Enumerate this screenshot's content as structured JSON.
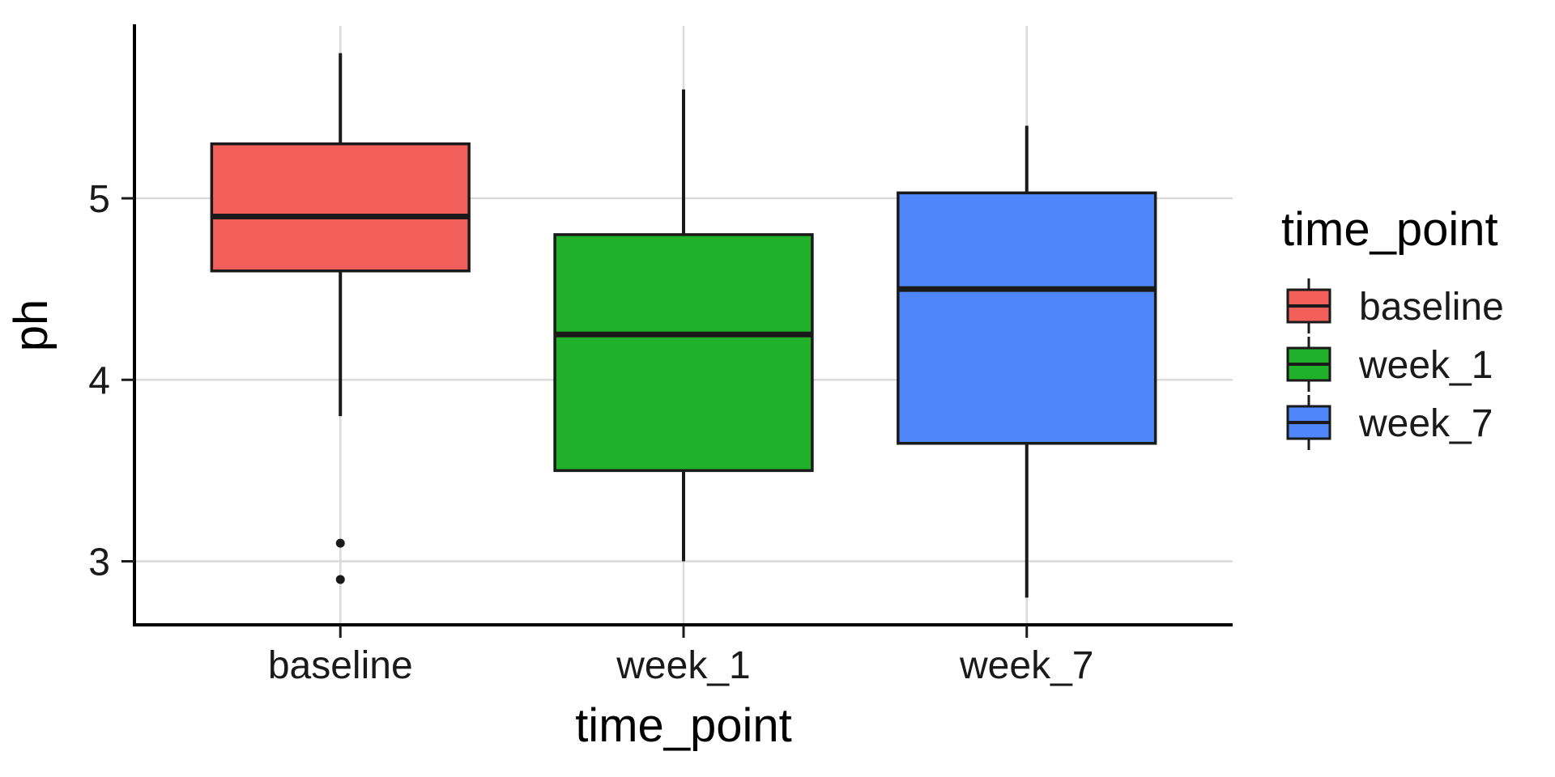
{
  "figure": {
    "background": "#FFFFFF",
    "panel_background": "#FFFFFF",
    "gridline_color": "#DADADA",
    "spine_color": "#000000",
    "box_border_color": "#1A1A1A",
    "title_color": "#000000",
    "tick_label_color": "#1A1A1A"
  },
  "chart_data": {
    "type": "boxplot",
    "title": "",
    "xlabel": "time_point",
    "ylabel": "ph",
    "categories": [
      "baseline",
      "week_1",
      "week_7"
    ],
    "y_ticks": [
      3,
      4,
      5
    ],
    "ylim": [
      2.65,
      5.95
    ],
    "grid": "major-horizontal-and-category-vertical",
    "legend_position": "right",
    "series": [
      {
        "name": "baseline",
        "fill": "#F25E5A",
        "whisker_low": 3.8,
        "q1": 4.6,
        "median": 4.9,
        "q3": 5.3,
        "whisker_high": 5.8,
        "outliers": [
          3.1,
          2.9
        ]
      },
      {
        "name": "week_1",
        "fill": "#20B02A",
        "whisker_low": 3.0,
        "q1": 3.5,
        "median": 4.25,
        "q3": 4.8,
        "whisker_high": 5.6,
        "outliers": []
      },
      {
        "name": "week_7",
        "fill": "#4F87FA",
        "whisker_low": 2.8,
        "q1": 3.65,
        "median": 4.5,
        "q3": 5.03,
        "whisker_high": 5.4,
        "outliers": []
      }
    ],
    "legend": {
      "title": "time_point",
      "entries": [
        {
          "label": "baseline",
          "color": "#F25E5A"
        },
        {
          "label": "week_1",
          "color": "#20B02A"
        },
        {
          "label": "week_7",
          "color": "#4F87FA"
        }
      ]
    }
  }
}
